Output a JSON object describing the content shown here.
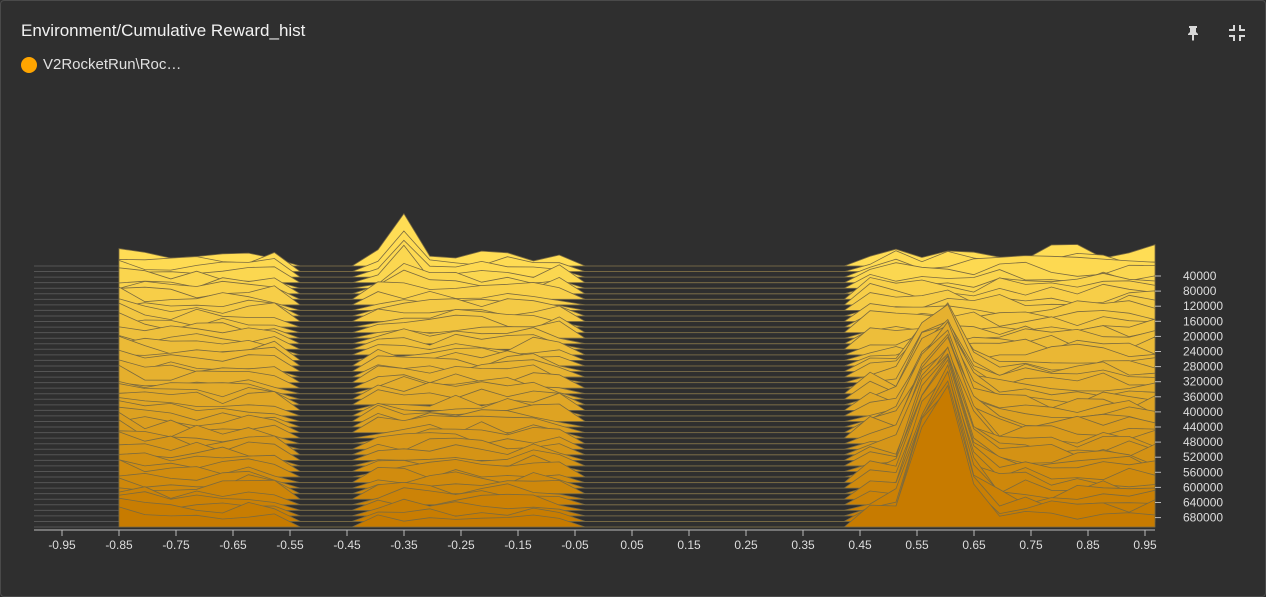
{
  "header": {
    "title": "Environment/Cumulative Reward_hist",
    "legend_label": "V2RocketRun\\Roc…",
    "legend_color": "#ffa500"
  },
  "toolbar": {
    "pin_icon": "pin-icon",
    "collapse_icon": "fullscreen-exit-icon"
  },
  "chart_data": {
    "type": "histogram-offset",
    "x_ticks": [
      "-0.95",
      "-0.85",
      "-0.75",
      "-0.65",
      "-0.55",
      "-0.45",
      "-0.35",
      "-0.25",
      "-0.15",
      "-0.05",
      "0.05",
      "0.15",
      "0.25",
      "0.35",
      "0.45",
      "0.55",
      "0.65",
      "0.75",
      "0.85",
      "0.95"
    ],
    "y_ticks": [
      "40000",
      "80000",
      "120000",
      "160000",
      "200000",
      "240000",
      "280000",
      "320000",
      "360000",
      "400000",
      "440000",
      "480000",
      "520000",
      "560000",
      "600000",
      "640000",
      "680000"
    ],
    "xlim": [
      -1.0,
      1.0
    ],
    "colors": {
      "early": "#ffdd55",
      "late": "#c77b00",
      "grid": "#555555",
      "axis_text": "#dddddd"
    }
  }
}
